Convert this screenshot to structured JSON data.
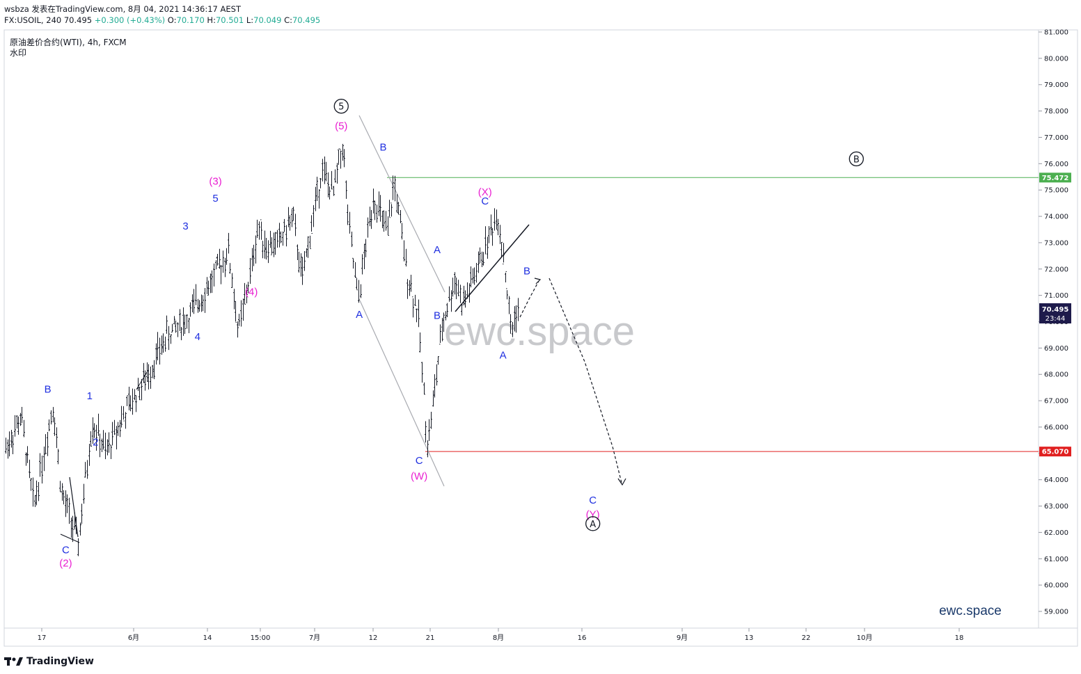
{
  "header": {
    "line1": "wsbza 发表在TradingView.com, 8月 04, 2021 14:36:17 AEST",
    "symbol": "FX:USOIL, 240",
    "last": "70.495",
    "change": "+0.300 (+0.43%)",
    "o_label": "O:",
    "o_val": "70.170",
    "h_label": "H:",
    "h_val": "70.501",
    "l_label": "L:",
    "l_val": "70.049",
    "c_label": "C:",
    "c_val": "70.495"
  },
  "legend": {
    "title": "原油差价合约(WTI), 4h, FXCM",
    "sub": "水印"
  },
  "watermark": "ewc.space",
  "brand_corner": "ewc.space",
  "footer": {
    "brand": "TradingView"
  },
  "colors": {
    "blue_label": "#1f2fe0",
    "magenta_label": "#e91ed1",
    "green_line": "#4caf50",
    "red_line": "#e02020",
    "candle": "#131722",
    "price_badge": "#1e1b4b"
  },
  "chart_data": {
    "type": "candlestick",
    "symbol": "FX:USOIL",
    "interval": "240",
    "y_axis": {
      "range": [
        58.6,
        81.0
      ],
      "ticks": [
        "81.000",
        "80.000",
        "79.000",
        "78.000",
        "77.000",
        "76.000",
        "75.000",
        "74.000",
        "73.000",
        "72.000",
        "71.000",
        "70.000",
        "69.000",
        "68.000",
        "67.000",
        "66.000",
        "65.000",
        "64.000",
        "63.000",
        "62.000",
        "61.000",
        "60.000",
        "59.000"
      ]
    },
    "x_axis": {
      "ticks": [
        "17",
        "6月",
        "14",
        "15:00",
        "7月",
        "12",
        "21",
        "8月",
        "16",
        "9月",
        "13",
        "22",
        "10月",
        "18"
      ]
    },
    "horizontal_lines": [
      {
        "value": 75.472,
        "label": "75.472",
        "color": "#4caf50"
      },
      {
        "value": 65.07,
        "label": "65.070",
        "color": "#e02020"
      }
    ],
    "current_price": {
      "value": 70.495,
      "label": "70.495",
      "countdown": "23:44"
    },
    "wave_labels": [
      {
        "text": "B",
        "color": "blue",
        "x": "May 18",
        "y": 67.3
      },
      {
        "text": "C",
        "color": "blue",
        "x": "May 21",
        "y": 61.2
      },
      {
        "text": "(2)",
        "color": "magenta",
        "x": "May 21",
        "y": 60.7
      },
      {
        "text": "1",
        "color": "blue",
        "x": "May 25",
        "y": 67.05
      },
      {
        "text": "2",
        "color": "blue",
        "x": "May 26",
        "y": 65.3
      },
      {
        "text": "3",
        "color": "blue",
        "x": "Jun 10",
        "y": 73.5
      },
      {
        "text": "4",
        "color": "blue",
        "x": "Jun 12",
        "y": 69.3
      },
      {
        "text": "5",
        "color": "blue",
        "x": "Jun 15",
        "y": 74.55
      },
      {
        "text": "(3)",
        "color": "magenta",
        "x": "Jun 15",
        "y": 75.2
      },
      {
        "text": "(4)",
        "color": "magenta",
        "x": "Jun 21",
        "y": 71.0
      },
      {
        "text": "(5)",
        "color": "magenta",
        "x": "Jul 6",
        "y": 77.3
      },
      {
        "text": "5",
        "color": "black-circle",
        "x": "Jul 6",
        "y": 78.05
      },
      {
        "text": "A",
        "color": "blue",
        "x": "Jul 9",
        "y": 70.15
      },
      {
        "text": "B",
        "color": "blue",
        "x": "Jul 13",
        "y": 76.5
      },
      {
        "text": "C",
        "color": "blue",
        "x": "Jul 19",
        "y": 64.6
      },
      {
        "text": "(W)",
        "color": "magenta",
        "x": "Jul 19",
        "y": 64.0
      },
      {
        "text": "B",
        "color": "blue",
        "x": "Jul 22",
        "y": 70.1
      },
      {
        "text": "A",
        "color": "blue",
        "x": "Jul 22",
        "y": 72.6
      },
      {
        "text": "(X)",
        "color": "magenta",
        "x": "Jul 30",
        "y": 74.8
      },
      {
        "text": "C",
        "color": "blue",
        "x": "Jul 30",
        "y": 74.45
      },
      {
        "text": "A",
        "color": "blue",
        "x": "Aug 2",
        "y": 68.6
      },
      {
        "text": "B",
        "color": "blue",
        "x": "Aug 6",
        "y": 71.8
      },
      {
        "text": "C",
        "color": "blue",
        "x": "Aug 17",
        "y": 63.1
      },
      {
        "text": "(Y)",
        "color": "magenta",
        "x": "Aug 17",
        "y": 62.55
      },
      {
        "text": "A",
        "color": "black-circle",
        "x": "Aug 17",
        "y": 62.2
      },
      {
        "text": "B",
        "color": "black-circle",
        "x": "Sep 30",
        "y": 76.05
      }
    ]
  }
}
